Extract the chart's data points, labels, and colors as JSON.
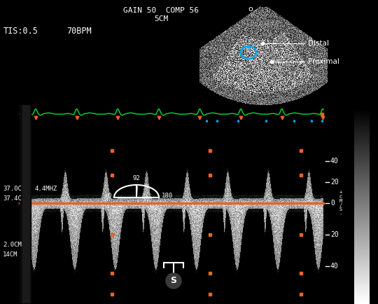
{
  "bg_color": "#000000",
  "baseline_color": "#E8622A",
  "ecg_color": "#00DD33",
  "marker_color": "#E8622A",
  "dot_color": "#E8622A",
  "white": "#FFFFFF",
  "cyan": "#00AAEE",
  "gray_dark": "#222222",
  "fig_width": 5.4,
  "fig_height": 4.34,
  "dpi": 100,
  "header1": "GAIN 50  COMP 56",
  "header2": "5CM",
  "tis": "TIS:0.5",
  "bpm": "70BPM",
  "temp1": "37.0C",
  "temp2": "37.4C",
  "freq": "4.4MHZ",
  "depth1": "2.0CM",
  "depth2": "14CM",
  "distal": "Distal",
  "proximal": "Proximal",
  "scale_ticks": [
    40,
    20,
    0,
    20,
    40
  ],
  "cms_label": "+\nC\nM\n/\nS\n-",
  "angle_0": "0",
  "angle_92": "92",
  "angle_180": "180"
}
